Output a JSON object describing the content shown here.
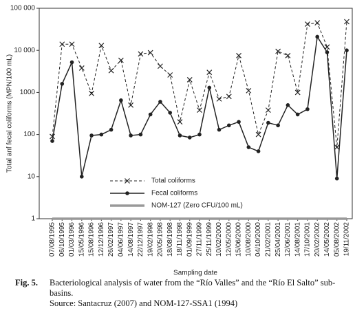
{
  "chart_data": {
    "type": "line",
    "ylabel": "Total anf fecal coliforms (MPN/100 mL)",
    "xlabel": "Sampling date",
    "categories": [
      "07/08/1995",
      "06/10/1995",
      "01/03/1996",
      "15/05/1996",
      "15/08/1996",
      "12/12/1996",
      "26/02/1997",
      "04/06/1997",
      "14/08/1997",
      "22/12/1997",
      "19/02/1998",
      "20/05/1998",
      "18/08/1998",
      "18/11/1998",
      "01/09/1999",
      "27/11/1999",
      "25/11/1999",
      "10/02/2000",
      "12/05/2000",
      "15/06/2000",
      "10/08/2000",
      "04/10/2000",
      "21/02/2001",
      "25/04/2001",
      "12/06/2001",
      "14/08/2001",
      "17/10/2001",
      "20/02/2002",
      "14/05/2002",
      "05/08/2002",
      "19/11/2002"
    ],
    "series": [
      {
        "name": "Total coliforms",
        "color": "#222222",
        "values": [
          90,
          14000,
          14000,
          3800,
          950,
          13000,
          3300,
          5800,
          500,
          8200,
          8800,
          4200,
          2600,
          200,
          2000,
          380,
          3000,
          700,
          800,
          7500,
          1100,
          100,
          380,
          9500,
          7500,
          1000,
          42000,
          45000,
          12000,
          50,
          48000
        ]
      },
      {
        "name": "Fecal coliforms",
        "color": "#222222",
        "values": [
          70,
          1600,
          5200,
          10,
          95,
          100,
          130,
          650,
          95,
          100,
          300,
          600,
          330,
          95,
          85,
          100,
          1300,
          130,
          165,
          200,
          50,
          40,
          190,
          165,
          500,
          300,
          400,
          21000,
          9000,
          9,
          10000
        ]
      },
      {
        "name": "NOM-127 (Zero CFU/100 mL)",
        "color": "#999999",
        "values": [
          1,
          1,
          1,
          1,
          1,
          1,
          1,
          1,
          1,
          1,
          1,
          1,
          1,
          1,
          1,
          1,
          1,
          1,
          1,
          1,
          1,
          1,
          1,
          1,
          1,
          1,
          1,
          1,
          1,
          1,
          1
        ]
      }
    ],
    "ylim": [
      1,
      100000
    ],
    "log_y": true,
    "yticks": [
      1,
      10,
      100,
      1000,
      {
        "value": 10000,
        "label": "10 000"
      },
      {
        "value": 100000,
        "label": "100 000"
      }
    ],
    "caption": {
      "label": "Fig. 5.",
      "text": "Bacteriological analysis of water from the “Río Valles” and the “Río El Salto” sub-basins.",
      "source": "Source: Santacruz (2007) and NOM-127-SSA1 (1994)"
    }
  }
}
